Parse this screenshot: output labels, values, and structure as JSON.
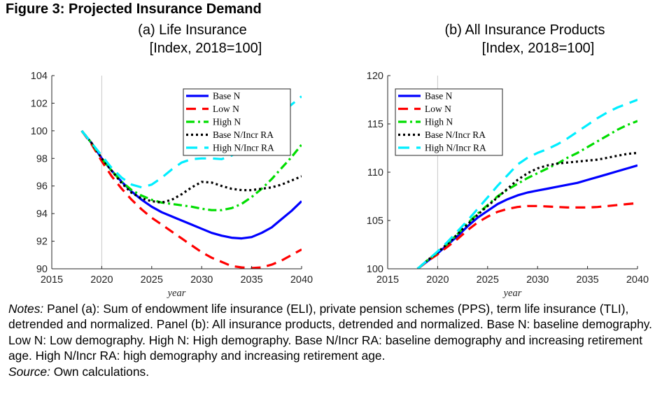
{
  "figure_title": "Figure 3: Projected Insurance Demand",
  "panels": [
    {
      "subtitle": "(a) Life Insurance",
      "unit": "[Index, 2018=100]"
    },
    {
      "subtitle": "(b) All Insurance Products",
      "unit": "[Index, 2018=100]"
    }
  ],
  "notes": {
    "label": "Notes:",
    "text": " Panel (a): Sum of endowment life insurance (ELI), private pension schemes (PPS), term life insurance (TLI), detrended and normalized. Panel (b): All insurance products, detrended and normalized. Base N: baseline demography. Low N: Low demography. High N: High demography. Base N/Incr RA: baseline demography and increasing retirement age. High N/Incr RA: high demography and increasing retirement age."
  },
  "source": {
    "label": "Source:",
    "text": " Own calculations."
  },
  "styles": {
    "Base N": {
      "color": "#0000ff",
      "dash": "none"
    },
    "Low N": {
      "color": "#ff0000",
      "dash": "14 9"
    },
    "High N": {
      "color": "#00dd00",
      "dash": "12 5 3 5"
    },
    "Base N/Incr RA": {
      "color": "#000000",
      "dash": "3 4"
    },
    "High N/Incr RA": {
      "color": "#00eeff",
      "dash": "16 10"
    }
  },
  "chart_data": [
    {
      "type": "line",
      "xlabel": "year",
      "ylabel": "",
      "xlim": [
        2015,
        2040
      ],
      "ylim": [
        90,
        104
      ],
      "xticks": [
        2015,
        2020,
        2025,
        2030,
        2035,
        2040
      ],
      "yticks": [
        90,
        92,
        94,
        96,
        98,
        100,
        102,
        104
      ],
      "vline": 2020,
      "grid": false,
      "legend": "top-right",
      "x": [
        2018,
        2019,
        2020,
        2021,
        2022,
        2023,
        2024,
        2025,
        2026,
        2027,
        2028,
        2029,
        2030,
        2031,
        2032,
        2033,
        2034,
        2035,
        2036,
        2037,
        2038,
        2039,
        2040
      ],
      "series": [
        {
          "name": "Base N",
          "values": [
            100.0,
            99.1,
            98.0,
            97.1,
            96.3,
            95.6,
            95.0,
            94.5,
            94.1,
            93.8,
            93.5,
            93.2,
            92.9,
            92.6,
            92.4,
            92.25,
            92.2,
            92.3,
            92.6,
            93.0,
            93.6,
            94.2,
            94.9
          ]
        },
        {
          "name": "Low N",
          "values": [
            100.0,
            99.0,
            97.8,
            96.7,
            95.8,
            95.0,
            94.3,
            93.7,
            93.2,
            92.7,
            92.2,
            91.7,
            91.2,
            90.8,
            90.5,
            90.2,
            90.1,
            90.05,
            90.1,
            90.3,
            90.6,
            91.0,
            91.4
          ]
        },
        {
          "name": "High N",
          "values": [
            100.0,
            99.1,
            98.0,
            97.1,
            96.3,
            95.7,
            95.3,
            95.0,
            94.8,
            94.7,
            94.6,
            94.5,
            94.35,
            94.25,
            94.25,
            94.4,
            94.7,
            95.2,
            95.8,
            96.5,
            97.3,
            98.1,
            99.0
          ]
        },
        {
          "name": "Base N/Incr RA",
          "values": [
            100.0,
            99.1,
            98.0,
            97.1,
            96.2,
            95.5,
            95.1,
            94.9,
            94.8,
            95.0,
            95.4,
            95.9,
            96.3,
            96.25,
            96.0,
            95.8,
            95.7,
            95.7,
            95.8,
            95.9,
            96.1,
            96.4,
            96.7
          ]
        },
        {
          "name": "High N/Incr RA",
          "values": [
            100.0,
            99.1,
            98.2,
            97.3,
            96.6,
            96.1,
            95.9,
            96.1,
            96.6,
            97.2,
            97.7,
            97.95,
            98.0,
            98.0,
            97.95,
            98.2,
            98.7,
            99.3,
            100.0,
            100.7,
            101.3,
            101.9,
            102.5
          ]
        }
      ]
    },
    {
      "type": "line",
      "xlabel": "year",
      "ylabel": "",
      "xlim": [
        2015,
        2040
      ],
      "ylim": [
        100,
        120
      ],
      "xticks": [
        2015,
        2020,
        2025,
        2030,
        2035,
        2040
      ],
      "yticks": [
        100,
        105,
        110,
        115,
        120
      ],
      "vline": 2020,
      "grid": false,
      "legend": "top-left",
      "x": [
        2018,
        2019,
        2020,
        2021,
        2022,
        2023,
        2024,
        2025,
        2026,
        2027,
        2028,
        2029,
        2030,
        2031,
        2032,
        2033,
        2034,
        2035,
        2036,
        2037,
        2038,
        2039,
        2040
      ],
      "series": [
        {
          "name": "Base N",
          "values": [
            100.0,
            100.8,
            101.6,
            102.5,
            103.4,
            104.4,
            105.3,
            106.0,
            106.7,
            107.2,
            107.6,
            107.9,
            108.1,
            108.3,
            108.5,
            108.7,
            108.9,
            109.2,
            109.5,
            109.8,
            110.1,
            110.4,
            110.7
          ]
        },
        {
          "name": "Low N",
          "values": [
            100.0,
            100.8,
            101.5,
            102.3,
            103.1,
            104.0,
            104.8,
            105.4,
            105.9,
            106.2,
            106.4,
            106.5,
            106.5,
            106.45,
            106.4,
            106.35,
            106.35,
            106.35,
            106.4,
            106.5,
            106.6,
            106.7,
            106.8
          ]
        },
        {
          "name": "High N",
          "values": [
            100.0,
            100.9,
            101.7,
            102.6,
            103.6,
            104.7,
            105.7,
            106.6,
            107.5,
            108.2,
            108.8,
            109.4,
            109.9,
            110.4,
            110.9,
            111.5,
            112.0,
            112.6,
            113.2,
            113.8,
            114.4,
            114.9,
            115.3
          ]
        },
        {
          "name": "Base N/Incr RA",
          "values": [
            100.0,
            100.9,
            101.7,
            102.6,
            103.6,
            104.6,
            105.6,
            106.5,
            107.4,
            108.3,
            109.2,
            109.9,
            110.4,
            110.7,
            110.9,
            111.0,
            111.1,
            111.2,
            111.3,
            111.5,
            111.7,
            111.9,
            112.0
          ]
        },
        {
          "name": "High N/Incr RA",
          "values": [
            100.0,
            100.9,
            101.8,
            102.8,
            103.9,
            105.0,
            106.2,
            107.4,
            108.6,
            109.7,
            110.8,
            111.5,
            112.0,
            112.4,
            112.9,
            113.5,
            114.2,
            114.9,
            115.6,
            116.2,
            116.7,
            117.1,
            117.5
          ]
        }
      ]
    }
  ]
}
